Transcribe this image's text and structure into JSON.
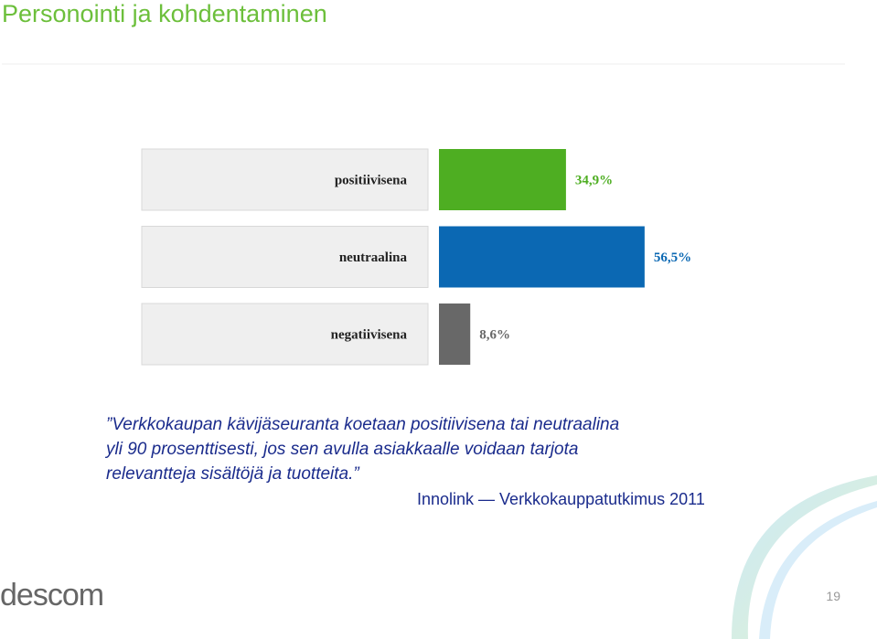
{
  "slide_title": "Personointi ja kohdentaminen",
  "chart_data": {
    "type": "bar",
    "orientation": "horizontal",
    "categories": [
      "positiivisena",
      "neutraalina",
      "negatiivisena"
    ],
    "values": [
      34.9,
      56.5,
      8.6
    ],
    "value_labels": [
      "34,9%",
      "56,5%",
      "8,6%"
    ],
    "colors": [
      "#4eae22",
      "#0b68b3",
      "#686868"
    ]
  },
  "quote": [
    "”Verkkokaupan kävijäseuranta koetaan positiivisena tai neutraalina",
    "yli 90 prosenttisesti, jos sen avulla asiakkaalle voidaan tarjota",
    "relevantteja sisältöjä ja tuotteita.”"
  ],
  "source": "Innolink — Verkkokauppatutkimus 2011",
  "logo": "descom",
  "page_number": "19"
}
